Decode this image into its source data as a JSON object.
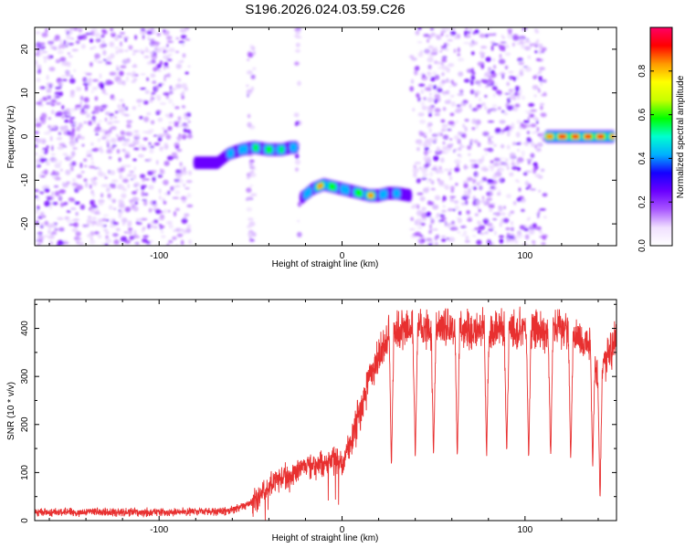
{
  "title": "S196.2026.024.03.59.C26",
  "chart_data": [
    {
      "type": "heatmap",
      "xlabel": "Height of straight line (km)",
      "ylabel": "Frequency (Hz)",
      "xlim": [
        -168,
        150
      ],
      "ylim": [
        -25,
        25
      ],
      "xticks": [
        -100,
        0,
        100
      ],
      "yticks": [
        -20,
        -10,
        0,
        10,
        20
      ],
      "colorbar": {
        "label": "Normalized spectral amplitude",
        "range": [
          0,
          1
        ],
        "ticks": [
          0.0,
          0.2,
          0.4,
          0.6,
          0.8
        ],
        "colors": [
          "#ffffff",
          "#f0e0ff",
          "#a855ff",
          "#6a00ff",
          "#1500ff",
          "#00b0ff",
          "#00ffd0",
          "#00ff00",
          "#c8ff00",
          "#ffff00",
          "#ff9900",
          "#ff0000",
          "#ff0066"
        ]
      },
      "noise_regions": [
        [
          -168,
          -83
        ],
        [
          -52,
          -48
        ],
        [
          -25,
          -23
        ],
        [
          38,
          111
        ]
      ],
      "tracks": [
        {
          "x": [
            -80,
            -68,
            -62,
            -55,
            -48,
            -40,
            -33,
            -28,
            -25
          ],
          "freq": [
            -6,
            -6,
            -4,
            -3,
            -2.5,
            -3,
            -3,
            -2.5,
            -2.5
          ],
          "amp": [
            0.25,
            0.35,
            0.45,
            0.5,
            0.55,
            0.6,
            0.55,
            0.5,
            0.4
          ]
        },
        {
          "x": [
            -22,
            -16,
            -10,
            -5,
            0,
            5,
            10,
            15,
            20,
            25,
            30,
            37
          ],
          "freq": [
            -14,
            -12,
            -11,
            -11.5,
            -12,
            -12.5,
            -13,
            -13.5,
            -13.5,
            -13,
            -13,
            -13.5
          ],
          "amp": [
            0.35,
            0.6,
            0.8,
            0.65,
            0.55,
            0.5,
            0.65,
            0.8,
            0.55,
            0.45,
            0.5,
            0.35
          ]
        },
        {
          "x": [
            112,
            120,
            128,
            136,
            144,
            148
          ],
          "freq": [
            0,
            0,
            0,
            0,
            0,
            0
          ],
          "amp": [
            0.75,
            0.95,
            0.9,
            0.95,
            0.9,
            0.75
          ]
        }
      ]
    },
    {
      "type": "line",
      "xlabel": "Height of straight line (km)",
      "ylabel": "SNR (10 * v/v)",
      "xlim": [
        -168,
        150
      ],
      "ylim": [
        0,
        460
      ],
      "xticks": [
        -100,
        0,
        100
      ],
      "yticks": [
        0,
        100,
        200,
        300,
        400
      ],
      "color": "#e83030",
      "series": {
        "name": "SNR",
        "x": [
          -168,
          -150,
          -130,
          -110,
          -90,
          -70,
          -60,
          -52,
          -45,
          -40,
          -35,
          -28,
          -20,
          -15,
          -10,
          -5,
          0,
          3,
          6,
          10,
          14,
          18,
          22,
          26,
          30,
          40,
          50,
          60,
          70,
          80,
          90,
          100,
          110,
          120,
          130,
          136,
          140,
          144,
          150
        ],
        "values": [
          18,
          17,
          18,
          17,
          18,
          19,
          22,
          32,
          50,
          70,
          85,
          95,
          110,
          115,
          120,
          125,
          120,
          150,
          180,
          230,
          280,
          320,
          360,
          385,
          395,
          400,
          395,
          405,
          395,
          400,
          395,
          400,
          395,
          395,
          385,
          360,
          300,
          330,
          385
        ]
      },
      "dips": [
        {
          "x": 27,
          "value": 110
        },
        {
          "x": 40,
          "value": 130
        },
        {
          "x": 50,
          "value": 135
        },
        {
          "x": 63,
          "value": 125
        },
        {
          "x": 79,
          "value": 130
        },
        {
          "x": 90,
          "value": 135
        },
        {
          "x": 102,
          "value": 125
        },
        {
          "x": 114,
          "value": 125
        },
        {
          "x": 125,
          "value": 120
        },
        {
          "x": 137,
          "value": 115
        },
        {
          "x": 141,
          "value": 45
        }
      ]
    }
  ]
}
